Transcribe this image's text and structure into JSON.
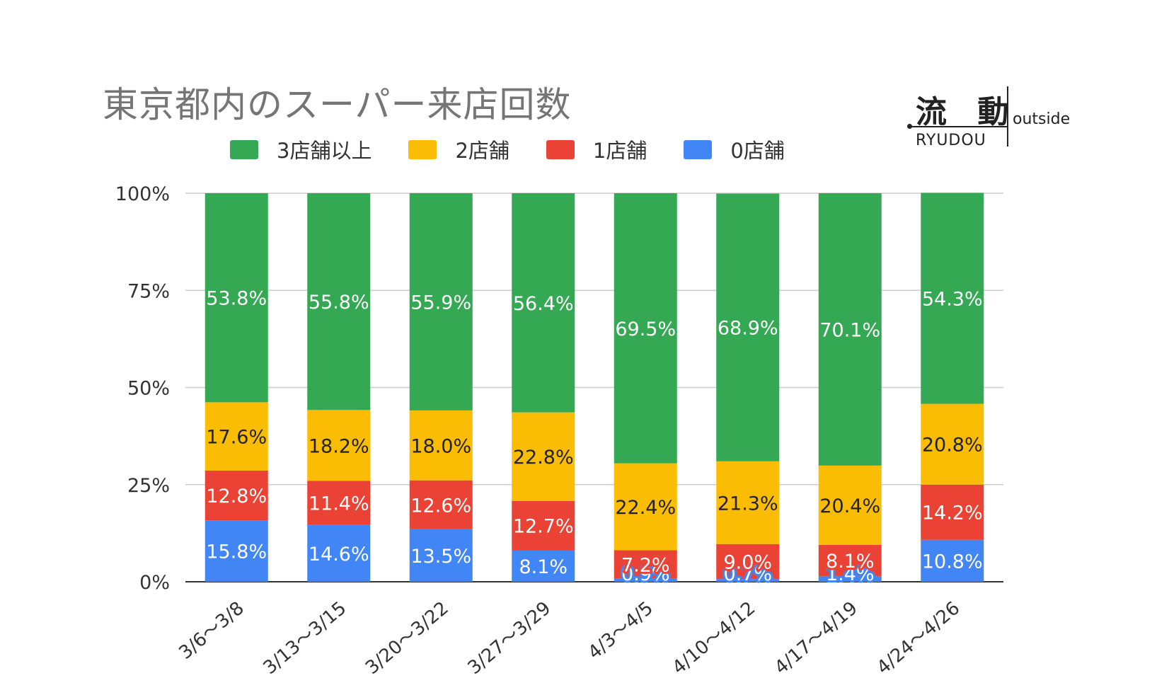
{
  "logo": {
    "main": "流 動",
    "romaji": "RYUDOU",
    "side": "outside"
  },
  "chart_data": {
    "type": "bar",
    "stacked": true,
    "normalized": true,
    "title": "東京都内のスーパー来店回数",
    "categories": [
      "3/6〜3/8",
      "3/13〜3/15",
      "3/20〜3/22",
      "3/27〜3/29",
      "4/3〜4/5",
      "4/10〜4/12",
      "4/17〜4/19",
      "4/24〜4/26"
    ],
    "series": [
      {
        "name": "0店舗",
        "color": "#4285f4",
        "values": [
          15.8,
          14.6,
          13.5,
          8.1,
          0.9,
          0.7,
          1.4,
          10.8
        ]
      },
      {
        "name": "1店舗",
        "color": "#ea4335",
        "values": [
          12.8,
          11.4,
          12.6,
          12.7,
          7.2,
          9.0,
          8.1,
          14.2
        ]
      },
      {
        "name": "2店舗",
        "color": "#fbbc04",
        "values": [
          17.6,
          18.2,
          18.0,
          22.8,
          22.4,
          21.3,
          20.4,
          20.8
        ]
      },
      {
        "name": "3店舗以上",
        "color": "#34a853",
        "values": [
          53.8,
          55.8,
          55.9,
          56.4,
          69.5,
          68.9,
          70.1,
          54.3
        ]
      }
    ],
    "legend_order": [
      "3店舗以上",
      "2店舗",
      "1店舗",
      "0店舗"
    ],
    "legend_position": "top",
    "yticks": [
      "0%",
      "25%",
      "50%",
      "75%",
      "100%"
    ],
    "ylim": [
      0,
      100
    ],
    "grid": true,
    "data_labels": [
      "15.8%",
      "14.6%",
      "13.5%",
      "8.1%",
      "0.9%",
      "0.7%",
      "1.4%",
      "10.8%",
      "12.8%",
      "11.4%",
      "12.6%",
      "12.7%",
      "7.2%",
      "9.0%",
      "8.1%",
      "14.2%",
      "17.6%",
      "18.2%",
      "18.0%",
      "22.8%",
      "22.4%",
      "21.3%",
      "20.4%",
      "20.8%",
      "53.8%",
      "55.8%",
      "55.9%",
      "56.4%",
      "69.5%",
      "68.9%",
      "70.1%",
      "54.3%"
    ]
  }
}
